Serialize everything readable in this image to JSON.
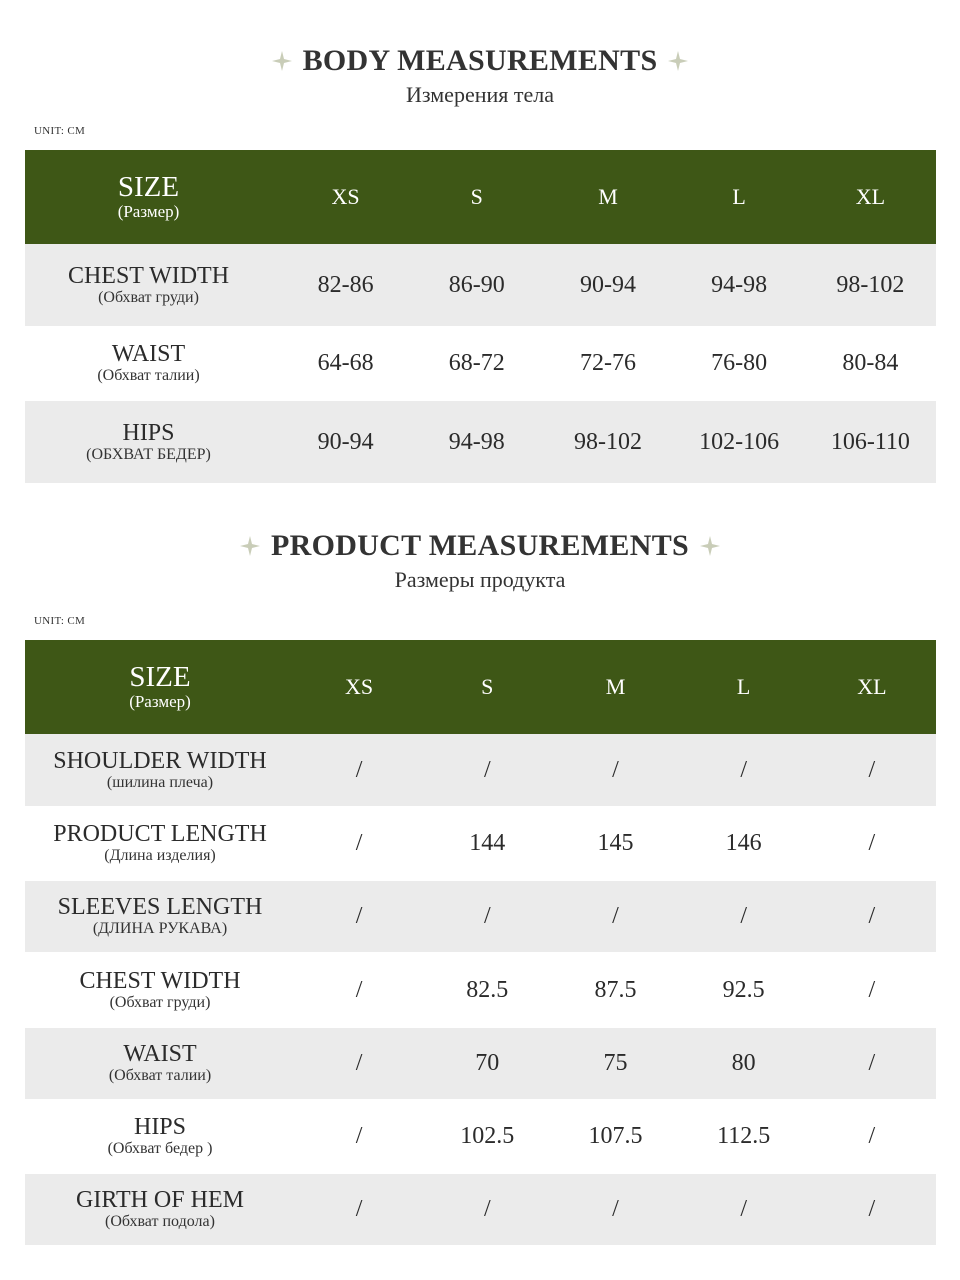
{
  "body_section": {
    "title": "BODY MEASUREMENTS",
    "subtitle": "Измерения тела",
    "unit": "UNIT: CM",
    "header": {
      "size_label": "SIZE",
      "size_sub": "(Размер)",
      "sizes": [
        "XS",
        "S",
        "M",
        "L",
        "XL"
      ]
    },
    "rows": [
      {
        "label": "CHEST WIDTH",
        "sub": "(Обхват груди)",
        "values": [
          "82-86",
          "86-90",
          "90-94",
          "94-98",
          "98-102"
        ]
      },
      {
        "label": "WAIST",
        "sub": "(Обхват талии)",
        "values": [
          "64-68",
          "68-72",
          "72-76",
          "76-80",
          "80-84"
        ]
      },
      {
        "label": "HIPS",
        "sub": "(ОБХВАТ БЕДЕР)",
        "values": [
          "90-94",
          "94-98",
          "98-102",
          "102-106",
          "106-110"
        ]
      }
    ]
  },
  "product_section": {
    "title": "PRODUCT MEASUREMENTS",
    "subtitle": "Размеры продукта",
    "unit": "UNIT: CM",
    "header": {
      "size_label": "SIZE",
      "size_sub": "(Размер)",
      "sizes": [
        "XS",
        "S",
        "M",
        "L",
        "XL"
      ]
    },
    "rows": [
      {
        "label": "SHOULDER WIDTH",
        "sub": "(шилина плеча)",
        "values": [
          "/",
          "/",
          "/",
          "/",
          "/"
        ]
      },
      {
        "label": "PRODUCT LENGTH",
        "sub": "(Длина изделия)",
        "values": [
          "/",
          "144",
          "145",
          "146",
          "/"
        ]
      },
      {
        "label": "SLEEVES LENGTH",
        "sub": "(ДЛИНА РУКАВА)",
        "values": [
          "/",
          "/",
          "/",
          "/",
          "/"
        ]
      },
      {
        "label": "CHEST WIDTH",
        "sub": "(Обхват груди)",
        "values": [
          "/",
          "82.5",
          "87.5",
          "92.5",
          "/"
        ]
      },
      {
        "label": "WAIST",
        "sub": "(Обхват талии)",
        "values": [
          "/",
          "70",
          "75",
          "80",
          "/"
        ]
      },
      {
        "label": "HIPS",
        "sub": "(Обхват бедер )",
        "values": [
          "/",
          "102.5",
          "107.5",
          "112.5",
          "/"
        ]
      },
      {
        "label": "GIRTH OF HEM",
        "sub": "(Обхват подола)",
        "values": [
          "/",
          "/",
          "/",
          "/",
          "/"
        ]
      }
    ]
  },
  "colors": {
    "header_green": "#3e5716",
    "row_shade": "#ebebeb",
    "sparkle": "#c9cdb8"
  },
  "icons": {
    "title_decoration": "sparkle-icon"
  }
}
